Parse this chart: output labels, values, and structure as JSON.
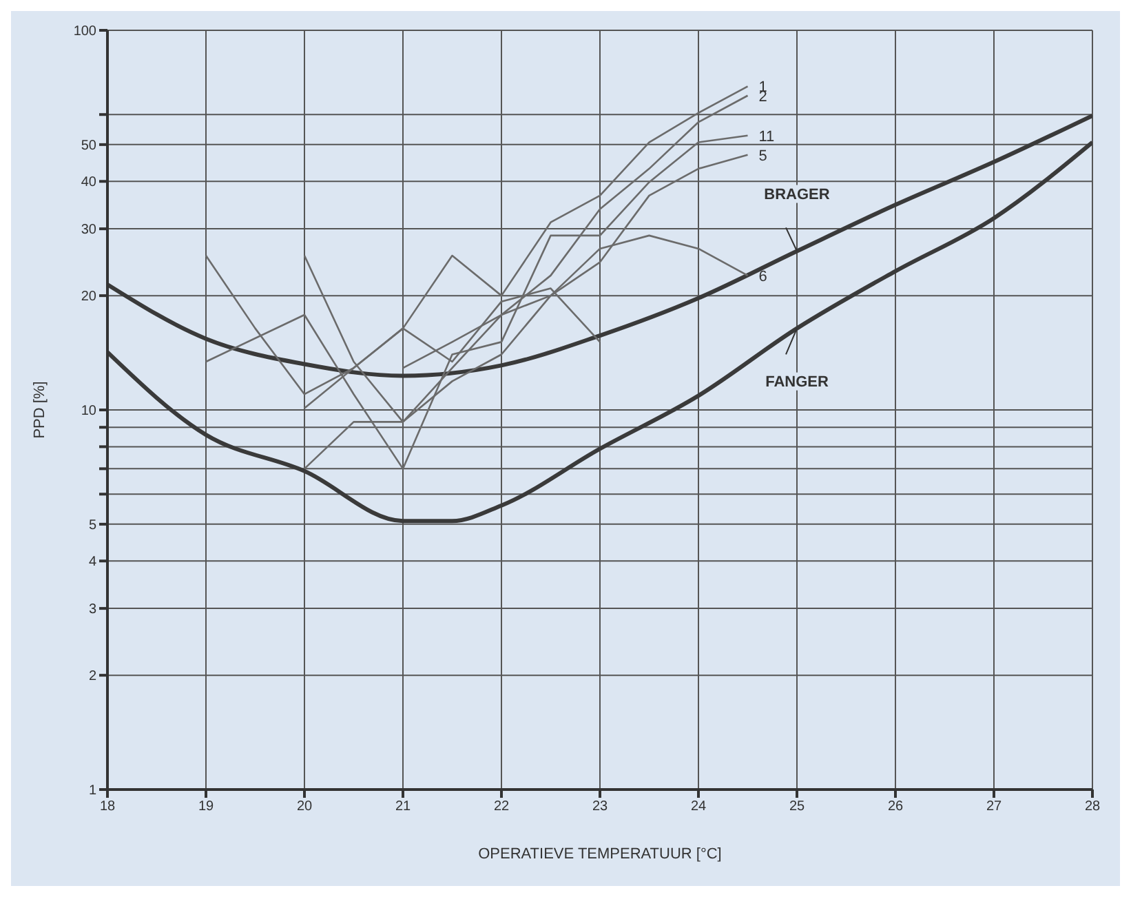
{
  "chart_data": {
    "type": "line",
    "xlabel": "OPERATIEVE TEMPERATUUR [°C]",
    "ylabel": "PPD [%]",
    "log": "y",
    "grid": true,
    "legend": false,
    "marker": "none",
    "xlim": [
      18,
      28
    ],
    "xticks": [
      18,
      19,
      20,
      21,
      22,
      23,
      24,
      25,
      26,
      27,
      28
    ],
    "ylim": [
      1,
      100
    ],
    "yticks": [
      1,
      2,
      3,
      4,
      5,
      {
        "value": 6,
        "label": null
      },
      {
        "value": 7,
        "label": null
      },
      {
        "value": 8,
        "label": null
      },
      {
        "value": 9,
        "label": null
      },
      10,
      20,
      30,
      40,
      50,
      {
        "value": 60,
        "label": null
      },
      100
    ],
    "series": [
      {
        "name": "BRAGER",
        "color": "#3a3a3a",
        "x": [
          18,
          19,
          20,
          21,
          22,
          23,
          24,
          25,
          26,
          27,
          28
        ],
        "values": [
          21.4,
          15.4,
          13.2,
          12.3,
          13.1,
          15.7,
          19.7,
          26.2,
          34.7,
          45,
          59.6
        ]
      },
      {
        "name": "FANGER",
        "color": "#3a3a3a",
        "x": [
          18,
          19,
          20,
          21,
          21.5,
          22,
          23,
          24,
          25,
          26,
          27,
          28
        ],
        "values": [
          14.2,
          8.6,
          6.9,
          5.1,
          5.1,
          5.6,
          7.9,
          10.9,
          16.4,
          23.2,
          32,
          50.7
        ]
      },
      {
        "name": "1",
        "color": "#6b6b6b",
        "x": [
          19,
          19.5,
          20,
          20.5,
          21,
          21.5,
          22,
          22.5,
          23,
          23.5,
          24,
          24.5
        ],
        "values": [
          25.5,
          16.4,
          11,
          12.9,
          16.4,
          25.5,
          20,
          31.2,
          36.7,
          50.7,
          60.6,
          71.2
        ]
      },
      {
        "name": "2",
        "color": "#6b6b6b",
        "x": [
          20,
          20.5,
          21,
          21.5,
          22,
          22.5,
          23,
          23.5,
          24,
          24.5
        ],
        "values": [
          25.5,
          13.4,
          9.3,
          12.9,
          17.8,
          22.6,
          33.8,
          43.2,
          57.3,
          67.3
        ]
      },
      {
        "name": "11",
        "color": "#6b6b6b",
        "x": [
          19,
          20,
          20.5,
          21,
          21.5,
          22,
          22.5,
          23,
          23.5,
          24,
          24.5
        ],
        "values": [
          13.4,
          17.8,
          11,
          7,
          14,
          15.1,
          28.8,
          28.8,
          39.8,
          50.7,
          52.8
        ]
      },
      {
        "name": "5",
        "color": "#6b6b6b",
        "x": [
          20,
          20.5,
          21,
          21.5,
          22,
          22.5,
          23,
          23.5,
          24,
          24.5
        ],
        "values": [
          7,
          9.3,
          9.3,
          11.9,
          14,
          20,
          24.5,
          36.7,
          43.2,
          47
        ]
      },
      {
        "name": "6",
        "color": "#6b6b6b",
        "x": [
          21,
          21.5,
          22,
          22.5,
          23,
          23.5,
          24,
          24.5
        ],
        "values": [
          12.9,
          15.1,
          17.8,
          20,
          26.6,
          28.8,
          26.6,
          22.6
        ]
      },
      {
        "color": "#6b6b6b",
        "x": [
          20,
          20.5,
          21,
          21.5,
          22,
          22.5,
          23
        ],
        "values": [
          10.1,
          12.9,
          16.4,
          13.4,
          19.3,
          20.9,
          15.1
        ]
      }
    ]
  }
}
